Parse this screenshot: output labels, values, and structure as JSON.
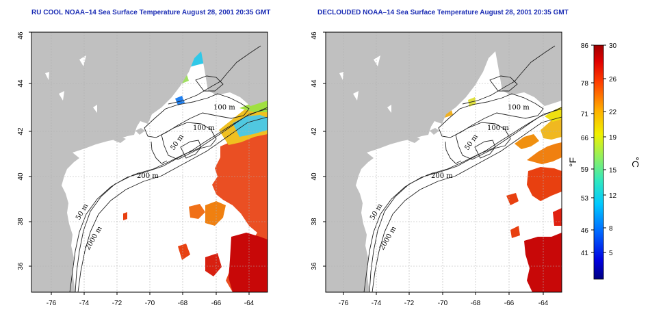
{
  "panels": [
    {
      "title": "RU COOL NOAA–14 Sea Surface Temperature August 28, 2001 20:35 GMT"
    },
    {
      "title": "DECLOUDED NOAA–14 Sea Surface Temperature August 28, 2001 20:35 GMT"
    }
  ],
  "lat_ticks": [
    "36",
    "38",
    "40",
    "42",
    "44",
    "46"
  ],
  "lon_ticks": [
    "-76",
    "-74",
    "-72",
    "-70",
    "-68",
    "-66",
    "-64"
  ],
  "contour_labels": [
    "100 m",
    "100 m",
    "50 m",
    "200 m",
    "50 m",
    "2000 m"
  ],
  "colorbar": {
    "fahrenheit_ticks": [
      "86",
      "78",
      "71",
      "66",
      "59",
      "53",
      "46",
      "41"
    ],
    "celsius_ticks": [
      "30",
      "26",
      "22",
      "19",
      "15",
      "12",
      "8",
      "5"
    ],
    "fahrenheit_unit": "°F",
    "celsius_unit": "°C"
  },
  "colors": {
    "title": "#1a2cb4",
    "land": "#c0c0c0",
    "ocean": "#ffffff",
    "grid": "#b0b0b0"
  }
}
